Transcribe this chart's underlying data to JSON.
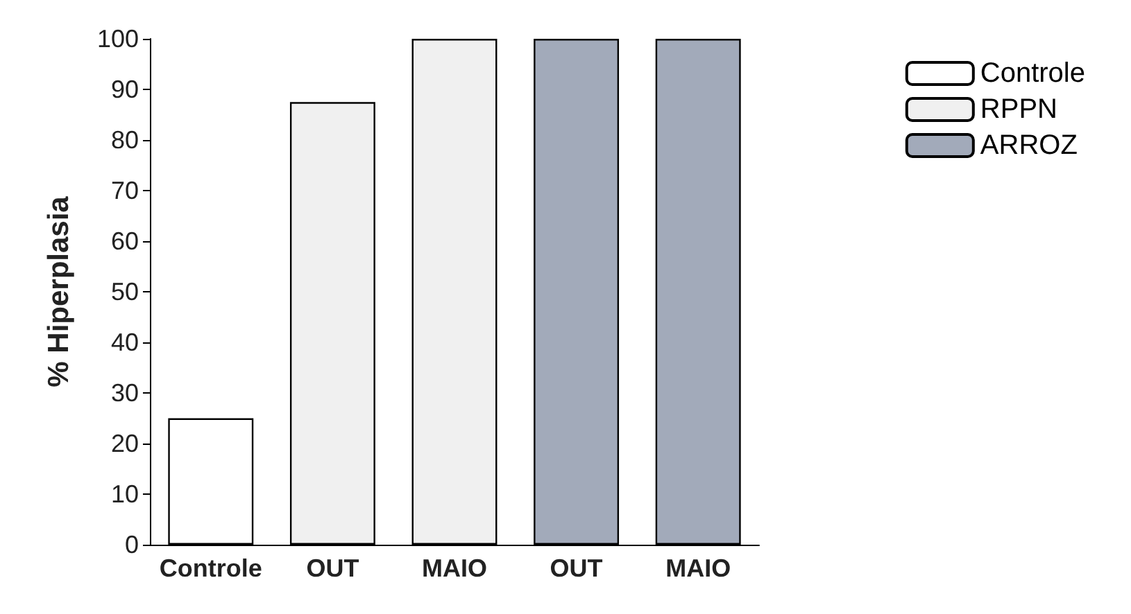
{
  "chart_data": {
    "type": "bar",
    "ylabel": "% Hiperplasia",
    "categories": [
      "Controle",
      "OUT",
      "MAIO",
      "OUT",
      "MAIO"
    ],
    "series": [
      {
        "name": "Controle",
        "color": "#ffffff",
        "values": [
          25,
          null,
          null,
          null,
          null
        ]
      },
      {
        "name": "RPPN",
        "color": "#f0f0f0",
        "values": [
          null,
          87.5,
          100,
          null,
          null
        ]
      },
      {
        "name": "ARROZ",
        "color": "#a2aaba",
        "values": [
          null,
          null,
          null,
          100,
          100
        ]
      }
    ],
    "ylim": [
      0,
      100
    ],
    "yticks": [
      0,
      10,
      20,
      30,
      40,
      50,
      60,
      70,
      80,
      90,
      100
    ],
    "grid": false,
    "legend": "top right"
  }
}
